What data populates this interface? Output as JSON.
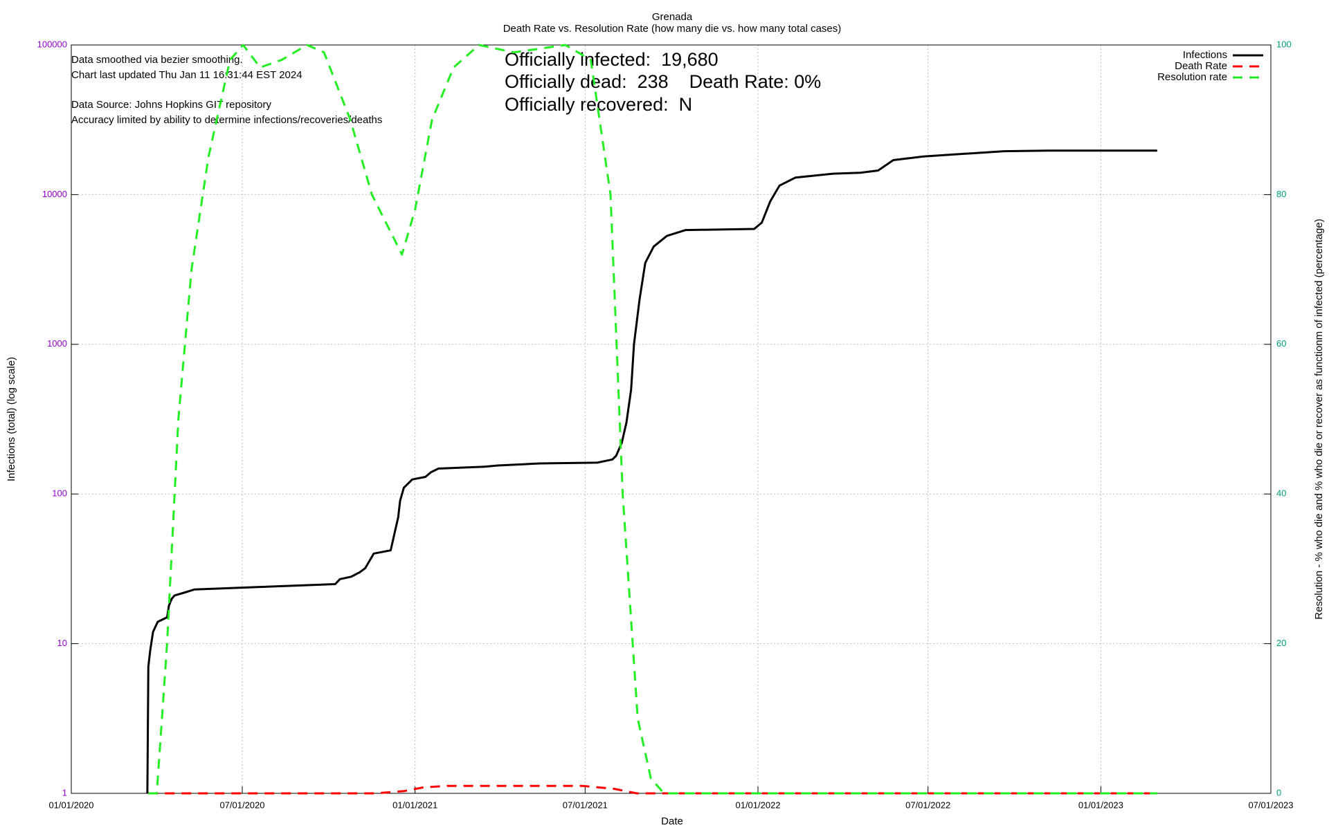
{
  "chart_data": {
    "type": "line",
    "title": "Grenada",
    "subtitle": "Death Rate vs. Resolution Rate (how many die vs. how many total cases)",
    "xlabel": "Date",
    "ylabel": "Infections (total) (log scale)",
    "y2label": "Resolution - % who die and % who die or recover as functionm of infected (percentage)",
    "annotations": [
      "Data smoothed via bezier smoothing.",
      "Chart last updated Thu Jan 11 16:31:44 EST 2024",
      "Data Source: Johns Hopkins GIT repository",
      "Accuracy limited by ability to determine infections/recoveries/deaths"
    ],
    "stats": [
      "Officially infected:  19,680",
      "Officially dead:  238    Death Rate: 0%",
      "Officially recovered:  N"
    ],
    "xlim": [
      "2020-01-01",
      "2023-07-01"
    ],
    "xticks": [
      {
        "value": "2020-01-01",
        "label": "01/01/2020"
      },
      {
        "value": "2020-07-01",
        "label": "07/01/2020"
      },
      {
        "value": "2021-01-01",
        "label": "01/01/2021"
      },
      {
        "value": "2021-07-01",
        "label": "07/01/2021"
      },
      {
        "value": "2022-01-01",
        "label": "01/01/2022"
      },
      {
        "value": "2022-07-01",
        "label": "07/01/2022"
      },
      {
        "value": "2023-01-01",
        "label": "01/01/2023"
      },
      {
        "value": "2023-07-01",
        "label": "07/01/2023"
      }
    ],
    "ylim": [
      1,
      100000
    ],
    "yticks": [
      1,
      10,
      100,
      1000,
      10000,
      100000
    ],
    "ylog": true,
    "y2lim": [
      0,
      100
    ],
    "y2ticks": [
      0,
      20,
      40,
      60,
      80,
      100
    ],
    "grid": true,
    "legend": "top-right",
    "series": [
      {
        "name": "Infections",
        "color": "#000000",
        "x": [
          "2020-03-22",
          "2020-03-23",
          "2020-03-25",
          "2020-03-28",
          "2020-04-02",
          "2020-04-12",
          "2020-04-14",
          "2020-04-17",
          "2020-04-20",
          "2020-05-01",
          "2020-05-11",
          "2020-07-27",
          "2020-10-08",
          "2020-10-13",
          "2020-10-25",
          "2020-11-03",
          "2020-11-09",
          "2020-11-18",
          "2020-12-06",
          "2020-12-14",
          "2020-12-16",
          "2020-12-20",
          "2020-12-29",
          "2021-01-12",
          "2021-01-18",
          "2021-01-26",
          "2021-03-16",
          "2021-03-30",
          "2021-04-26",
          "2021-05-14",
          "2021-07-14",
          "2021-07-30",
          "2021-08-03",
          "2021-08-09",
          "2021-08-14",
          "2021-08-19",
          "2021-08-22",
          "2021-08-28",
          "2021-09-03",
          "2021-09-12",
          "2021-09-26",
          "2021-10-16",
          "2021-12-28",
          "2022-01-05",
          "2022-01-14",
          "2022-01-24",
          "2022-02-10",
          "2022-03-22",
          "2022-04-20",
          "2022-05-09",
          "2022-05-25",
          "2022-06-26",
          "2022-07-25",
          "2022-08-23",
          "2022-09-20",
          "2022-11-06",
          "2023-03-02"
        ],
        "values": [
          1,
          7,
          9,
          12,
          14,
          15,
          18,
          20,
          21,
          22,
          23,
          24,
          25,
          27,
          28,
          30,
          32,
          40,
          42,
          70,
          90,
          110,
          125,
          130,
          140,
          148,
          152,
          155,
          158,
          160,
          162,
          170,
          180,
          220,
          300,
          500,
          1000,
          2000,
          3500,
          4500,
          5300,
          5800,
          5900,
          6500,
          9000,
          11500,
          13000,
          13800,
          14000,
          14500,
          17000,
          18000,
          18500,
          19000,
          19500,
          19680,
          19680
        ]
      },
      {
        "name": "Death Rate",
        "color": "#ff0000",
        "axis": "y2",
        "dash": true,
        "x": [
          "2020-03-23",
          "2020-11-20",
          "2020-12-20",
          "2021-01-10",
          "2021-02-05",
          "2021-06-28",
          "2021-08-01",
          "2021-08-25",
          "2023-03-02"
        ],
        "values": [
          0,
          0,
          0.3,
          0.8,
          1,
          1,
          0.6,
          0,
          0
        ]
      },
      {
        "name": "Resolution rate",
        "color": "#22ee22",
        "axis": "y2",
        "dash": true,
        "x": [
          "2020-03-23",
          "2020-04-01",
          "2020-04-12",
          "2020-04-24",
          "2020-05-08",
          "2020-05-26",
          "2020-06-18",
          "2020-07-02",
          "2020-07-20",
          "2020-08-12",
          "2020-09-08",
          "2020-09-26",
          "2020-10-24",
          "2020-11-16",
          "2020-12-18",
          "2021-01-01",
          "2021-01-19",
          "2021-02-11",
          "2021-03-10",
          "2021-04-16",
          "2021-06-10",
          "2021-07-07",
          "2021-07-28",
          "2021-08-10",
          "2021-08-26",
          "2021-09-09",
          "2021-09-23",
          "2023-03-02"
        ],
        "values": [
          0,
          0,
          20,
          50,
          70,
          85,
          98,
          100,
          97,
          98,
          100,
          99,
          90,
          80,
          72,
          78,
          90,
          97,
          100,
          99,
          100,
          98,
          80,
          40,
          10,
          2,
          0,
          0
        ]
      }
    ]
  }
}
